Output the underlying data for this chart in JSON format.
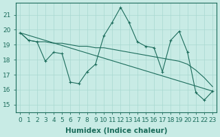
{
  "xlabel": "Humidex (Indice chaleur)",
  "xlim": [
    -0.5,
    23.5
  ],
  "ylim": [
    14.5,
    21.8
  ],
  "yticks": [
    15,
    16,
    17,
    18,
    19,
    20,
    21
  ],
  "xticks": [
    0,
    1,
    2,
    3,
    4,
    5,
    6,
    7,
    8,
    9,
    10,
    11,
    12,
    13,
    14,
    15,
    16,
    17,
    18,
    19,
    20,
    21,
    22,
    23
  ],
  "bg_color": "#c8ebe5",
  "line_color": "#1a6b5a",
  "grid_color": "#a8d8d0",
  "tick_fontsize": 6.5,
  "label_fontsize": 7.5,
  "line1_x": [
    0,
    1,
    2,
    3,
    4,
    5,
    6,
    7,
    8,
    9,
    10,
    11,
    12,
    13,
    14,
    15,
    16,
    17,
    18,
    19,
    20,
    21,
    22,
    23
  ],
  "line1_y": [
    19.8,
    19.3,
    19.2,
    17.9,
    18.5,
    18.4,
    16.5,
    16.4,
    17.2,
    17.7,
    19.6,
    20.5,
    21.5,
    20.5,
    19.2,
    18.9,
    18.8,
    17.2,
    19.3,
    19.9,
    18.5,
    15.8,
    15.3,
    15.9
  ],
  "line2_x": [
    0,
    1,
    2,
    3,
    4,
    5,
    6,
    7,
    8,
    9,
    10,
    11,
    12,
    13,
    14,
    15,
    16,
    17,
    18,
    19,
    20,
    21,
    22,
    23
  ],
  "line2_y": [
    19.8,
    19.3,
    19.2,
    19.2,
    19.1,
    19.1,
    19.0,
    18.9,
    18.9,
    18.8,
    18.8,
    18.7,
    18.6,
    18.5,
    18.4,
    18.3,
    18.2,
    18.1,
    18.0,
    17.9,
    17.7,
    17.3,
    16.8,
    16.2
  ],
  "line3_x": [
    0,
    23
  ],
  "line3_y": [
    19.8,
    15.9
  ]
}
